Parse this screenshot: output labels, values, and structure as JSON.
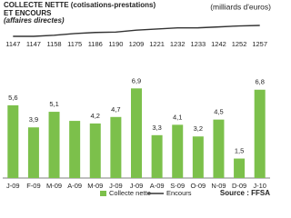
{
  "chart_data": {
    "type": "bar",
    "title": "COLLECTE NETTE (cotisations-prestations)",
    "title_line2": "ET ENCOURS",
    "subtitle": "(affaires directes)",
    "unit_note": "(milliards d'euros)",
    "source": "Source : FFSA",
    "categories": [
      "J-09",
      "F-09",
      "M-09",
      "A-09",
      "M-09",
      "J-09",
      "J-09",
      "A-09",
      "S-09",
      "O-09",
      "N-09",
      "D-09",
      "J-10"
    ],
    "series": [
      {
        "name": "Collecte nette",
        "type": "bar",
        "color": "#7cc04b",
        "values": [
          5.6,
          3.9,
          5.1,
          4.4,
          4.2,
          4.7,
          6.9,
          3.3,
          4.1,
          3.2,
          4.5,
          1.5,
          6.8
        ],
        "value_labels": [
          "5,6",
          "3,9",
          "5,1",
          null,
          "4,2",
          "4,7",
          "6,9",
          "3,3",
          "4,1",
          "3,2",
          "4,5",
          "1,5",
          "6,8"
        ]
      },
      {
        "name": "Encours",
        "type": "line",
        "color": "#333333",
        "values": [
          1147,
          1147,
          1158,
          1175,
          1186,
          1190,
          1209,
          1221,
          1232,
          1233,
          1242,
          1252,
          1257
        ]
      }
    ]
  }
}
